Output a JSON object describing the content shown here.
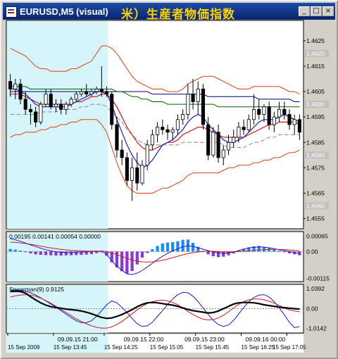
{
  "window": {
    "title": "EURUSD,M5 (visual)",
    "overlay_title": "米）生産者物価指数",
    "controls": {
      "minimize": "_",
      "maximize": "□",
      "close": "×"
    }
  },
  "colors": {
    "background": "#ffffff",
    "shaded_region": "#d6f5fb",
    "bull_candle": "#ffffff",
    "bear_candle": "#000000",
    "bollinger": "#e04010",
    "ma_blue": "#1818d0",
    "ma_red": "#d01818",
    "ma_green": "#006000",
    "ma_navy": "#000080",
    "macd_hist": "#8a3cd0",
    "macd_hist_pos": "#1e8cf0",
    "grid_dash": "#888888",
    "price_label_bg": "#c0c0c0"
  },
  "chart_data": [
    {
      "type": "candlestick",
      "name": "price",
      "y_ticks": [
        "1.4625",
        "1.4615",
        "1.4605",
        "1.4595",
        "1.4585",
        "1.4575",
        "1.4565",
        "1.4555"
      ],
      "y_highlight_labels": [
        "1.4620",
        "1.4600",
        "1.4580",
        "1.4560"
      ],
      "ylim": [
        1.4551,
        1.4633
      ],
      "candles": [
        [
          1.4609,
          1.4612,
          1.4603,
          1.4606
        ],
        [
          1.4606,
          1.461,
          1.4602,
          1.4608
        ],
        [
          1.4608,
          1.461,
          1.46,
          1.4602
        ],
        [
          1.4602,
          1.4605,
          1.4596,
          1.4598
        ],
        [
          1.4598,
          1.46,
          1.4592,
          1.4597
        ],
        [
          1.4597,
          1.4599,
          1.4591,
          1.4593
        ],
        [
          1.4593,
          1.4601,
          1.4592,
          1.46
        ],
        [
          1.46,
          1.4606,
          1.4599,
          1.4604
        ],
        [
          1.4604,
          1.4606,
          1.4598,
          1.4599
        ],
        [
          1.4599,
          1.4602,
          1.4597,
          1.46
        ],
        [
          1.46,
          1.4602,
          1.4596,
          1.4598
        ],
        [
          1.4598,
          1.4601,
          1.4596,
          1.46
        ],
        [
          1.46,
          1.4603,
          1.4599,
          1.4602
        ],
        [
          1.4602,
          1.4605,
          1.4601,
          1.4604
        ],
        [
          1.4604,
          1.4606,
          1.4603,
          1.4605
        ],
        [
          1.4605,
          1.4608,
          1.4603,
          1.4604
        ],
        [
          1.4604,
          1.4606,
          1.4603,
          1.4605
        ],
        [
          1.4605,
          1.4607,
          1.4604,
          1.4606
        ],
        [
          1.4606,
          1.4615,
          1.4603,
          1.4605
        ],
        [
          1.4605,
          1.4607,
          1.4603,
          1.4604
        ],
        [
          1.4604,
          1.4605,
          1.459,
          1.4592
        ],
        [
          1.4592,
          1.4595,
          1.4579,
          1.4582
        ],
        [
          1.4582,
          1.4586,
          1.4576,
          1.4579
        ],
        [
          1.4579,
          1.4581,
          1.4568,
          1.457
        ],
        [
          1.457,
          1.4579,
          1.4562,
          1.4575
        ],
        [
          1.4575,
          1.4581,
          1.4566,
          1.4569
        ],
        [
          1.4569,
          1.4578,
          1.4568,
          1.4576
        ],
        [
          1.4576,
          1.4586,
          1.4574,
          1.4584
        ],
        [
          1.4584,
          1.459,
          1.4582,
          1.4588
        ],
        [
          1.4588,
          1.4593,
          1.4585,
          1.4591
        ],
        [
          1.4591,
          1.4594,
          1.4588,
          1.459
        ],
        [
          1.459,
          1.4592,
          1.4586,
          1.4589
        ],
        [
          1.4589,
          1.4591,
          1.4586,
          1.459
        ],
        [
          1.459,
          1.4596,
          1.4588,
          1.4594
        ],
        [
          1.4594,
          1.4598,
          1.4592,
          1.4596
        ],
        [
          1.4596,
          1.4608,
          1.4594,
          1.4604
        ],
        [
          1.4604,
          1.461,
          1.4598,
          1.4601
        ],
        [
          1.4601,
          1.4609,
          1.4596,
          1.4606
        ],
        [
          1.4606,
          1.4608,
          1.459,
          1.4592
        ],
        [
          1.4592,
          1.4595,
          1.4578,
          1.458
        ],
        [
          1.458,
          1.4591,
          1.4579,
          1.4589
        ],
        [
          1.4589,
          1.4592,
          1.4577,
          1.4579
        ],
        [
          1.4579,
          1.4584,
          1.4576,
          1.4582
        ],
        [
          1.4582,
          1.4588,
          1.458,
          1.4585
        ],
        [
          1.4585,
          1.459,
          1.4583,
          1.4587
        ],
        [
          1.4587,
          1.4593,
          1.4585,
          1.4591
        ],
        [
          1.4591,
          1.4594,
          1.4588,
          1.459
        ],
        [
          1.459,
          1.4596,
          1.4589,
          1.4594
        ],
        [
          1.4594,
          1.4604,
          1.4592,
          1.4598
        ],
        [
          1.4598,
          1.4602,
          1.4594,
          1.4596
        ],
        [
          1.4596,
          1.46,
          1.4593,
          1.4599
        ],
        [
          1.4599,
          1.4601,
          1.459,
          1.4592
        ],
        [
          1.4592,
          1.4597,
          1.4589,
          1.4595
        ],
        [
          1.4595,
          1.4601,
          1.4593,
          1.4598
        ],
        [
          1.4598,
          1.4601,
          1.4594,
          1.4596
        ],
        [
          1.4596,
          1.4598,
          1.459,
          1.4592
        ],
        [
          1.4592,
          1.4596,
          1.4588,
          1.4594
        ],
        [
          1.4594,
          1.4596,
          1.4586,
          1.4589
        ]
      ],
      "bollinger_upper": [
        1.4622,
        1.4621,
        1.462,
        1.4619,
        1.4617,
        1.4615,
        1.4614,
        1.4614,
        1.4613,
        1.4613,
        1.4613,
        1.4613,
        1.4614,
        1.4614,
        1.4615,
        1.4616,
        1.4617,
        1.462,
        1.4623,
        1.4623,
        1.4622,
        1.462,
        1.4617,
        1.4614,
        1.4611,
        1.4609,
        1.4608,
        1.4607,
        1.4606,
        1.4606,
        1.4606,
        1.4605,
        1.4605,
        1.4605,
        1.4606,
        1.4608,
        1.4609,
        1.461,
        1.4611,
        1.4611,
        1.4611,
        1.461,
        1.4609,
        1.4608,
        1.4607,
        1.4606,
        1.4606,
        1.4606,
        1.4607,
        1.4607,
        1.4607,
        1.4607,
        1.4607,
        1.4607,
        1.4606,
        1.4605,
        1.4605,
        1.4604
      ],
      "bollinger_lower": [
        1.4587,
        1.4588,
        1.4588,
        1.4589,
        1.4589,
        1.4589,
        1.459,
        1.459,
        1.4591,
        1.4591,
        1.4592,
        1.4592,
        1.4593,
        1.4593,
        1.4594,
        1.4594,
        1.4594,
        1.4594,
        1.4592,
        1.4589,
        1.4583,
        1.4577,
        1.4572,
        1.4568,
        1.4566,
        1.4565,
        1.4565,
        1.4565,
        1.4565,
        1.4566,
        1.4567,
        1.4567,
        1.4568,
        1.4569,
        1.457,
        1.4572,
        1.4573,
        1.4573,
        1.4573,
        1.4573,
        1.4573,
        1.4573,
        1.4574,
        1.4575,
        1.4575,
        1.4576,
        1.4576,
        1.4576,
        1.4577,
        1.4577,
        1.4578,
        1.4578,
        1.4579,
        1.4579,
        1.458,
        1.4581,
        1.4581,
        1.4582
      ],
      "ma_blue": [
        1.4606,
        1.4606,
        1.4605,
        1.4604,
        1.4602,
        1.46,
        1.4599,
        1.4599,
        1.4599,
        1.4599,
        1.4599,
        1.4599,
        1.46,
        1.4601,
        1.4602,
        1.4603,
        1.4604,
        1.4605,
        1.4605,
        1.4604,
        1.46,
        1.4594,
        1.4589,
        1.4584,
        1.458,
        1.4577,
        1.4575,
        1.4576,
        1.4578,
        1.4581,
        1.4584,
        1.4585,
        1.4586,
        1.4588,
        1.459,
        1.4593,
        1.4595,
        1.4596,
        1.4595,
        1.4592,
        1.459,
        1.4588,
        1.4586,
        1.4585,
        1.4585,
        1.4586,
        1.4587,
        1.4589,
        1.4591,
        1.4593,
        1.4594,
        1.4594,
        1.4594,
        1.4595,
        1.4596,
        1.4595,
        1.4594,
        1.4593
      ],
      "ma_red": [
        1.4604,
        1.4604,
        1.4604,
        1.4603,
        1.4602,
        1.4601,
        1.46,
        1.46,
        1.46,
        1.46,
        1.46,
        1.46,
        1.46,
        1.4601,
        1.4601,
        1.4602,
        1.4603,
        1.4603,
        1.4604,
        1.4604,
        1.4602,
        1.4599,
        1.4595,
        1.4591,
        1.4588,
        1.4585,
        1.4583,
        1.4582,
        1.4582,
        1.4583,
        1.4584,
        1.4585,
        1.4585,
        1.4586,
        1.4588,
        1.4589,
        1.459,
        1.4591,
        1.4591,
        1.459,
        1.4589,
        1.4588,
        1.4587,
        1.4587,
        1.4587,
        1.4587,
        1.4587,
        1.4588,
        1.4589,
        1.459,
        1.4591,
        1.4592,
        1.4592,
        1.4593,
        1.4593,
        1.4593,
        1.4593,
        1.4592
      ],
      "ma_green": [
        1.4607,
        1.4607,
        1.4607,
        1.4607,
        1.4606,
        1.4606,
        1.4606,
        1.4606,
        1.4606,
        1.4606,
        1.4606,
        1.4606,
        1.4606,
        1.4606,
        1.4606,
        1.4606,
        1.4606,
        1.4606,
        1.4606,
        1.4606,
        1.4606,
        1.4605,
        1.4605,
        1.4604,
        1.4603,
        1.4603,
        1.4602,
        1.4602,
        1.4601,
        1.4601,
        1.4601,
        1.46,
        1.46,
        1.46,
        1.46,
        1.46,
        1.46,
        1.46,
        1.46,
        1.46,
        1.46,
        1.4599,
        1.4599,
        1.4599,
        1.4599,
        1.4599,
        1.4599,
        1.4599,
        1.4599,
        1.4599,
        1.4599,
        1.4599,
        1.4599,
        1.4599,
        1.4599,
        1.4599,
        1.4599,
        1.4599
      ],
      "ma_navy": [
        1.4605,
        1.4605,
        1.4605,
        1.4605,
        1.4605,
        1.4605,
        1.4605,
        1.4605,
        1.4605,
        1.4605,
        1.4605,
        1.4605,
        1.4605,
        1.4605,
        1.4605,
        1.4605,
        1.4605,
        1.4605,
        1.4605,
        1.4605,
        1.4605,
        1.4605,
        1.4605,
        1.4605,
        1.4605,
        1.4605,
        1.4605,
        1.4605,
        1.4604,
        1.4604,
        1.4604,
        1.4604,
        1.4604,
        1.4604,
        1.4604,
        1.4604,
        1.4604,
        1.4604,
        1.4604,
        1.4603,
        1.4603,
        1.4603,
        1.4603,
        1.4603,
        1.4603,
        1.4603,
        1.4603,
        1.4603,
        1.4603,
        1.4602,
        1.4602,
        1.4602,
        1.4602,
        1.4602,
        1.4602,
        1.4602,
        1.4601,
        1.4601
      ],
      "dash_mid": [
        1.4596,
        1.4596,
        1.4596,
        1.4596,
        1.4596,
        1.4596,
        1.4597,
        1.4597,
        1.4597,
        1.4597,
        1.4598,
        1.4598,
        1.4598,
        1.4598,
        1.4599,
        1.4599,
        1.46,
        1.46,
        1.46,
        1.4599,
        1.4597,
        1.4595,
        1.4593,
        1.459,
        1.4588,
        1.4586,
        1.4585,
        1.4584,
        1.4584,
        1.4584,
        1.4584,
        1.4584,
        1.4584,
        1.4584,
        1.4585,
        1.4585,
        1.4585,
        1.4585,
        1.4585,
        1.4585,
        1.4585,
        1.4585,
        1.4584,
        1.4583,
        1.4583,
        1.4583,
        1.4583,
        1.4584,
        1.4585,
        1.4585,
        1.4586,
        1.4587,
        1.4587,
        1.4588,
        1.4588,
        1.4588,
        1.4588,
        1.4588
      ]
    },
    {
      "type": "bar",
      "name": "macd",
      "legend_text": "0.00195 0.00141 0.00054 0.00000",
      "y_ticks": [
        "0.00065",
        "0.00",
        "-0.00115"
      ],
      "ylim": [
        -0.00128,
        0.00085
      ],
      "values": [
        0.00011,
        8e-05,
        4e-05,
        -2e-05,
        -8e-05,
        -0.00012,
        -0.00014,
        -0.00015,
        -0.00016,
        -0.00017,
        -0.00017,
        -0.00016,
        -0.00016,
        -0.00015,
        -0.00014,
        -0.00013,
        -0.00011,
        -7e-05,
        -2e-05,
        -0.00018,
        -0.00046,
        -0.00068,
        -0.00084,
        -0.00094,
        -0.00083,
        -0.00055,
        -0.00026,
        -6e-05,
        0.0001,
        0.00024,
        0.00034,
        0.00038,
        0.0004,
        0.00044,
        0.0005,
        0.00051,
        0.00037,
        0.0002,
        3e-05,
        -0.00012,
        -0.0002,
        -0.00024,
        -0.00022,
        -0.00016,
        -8e-05,
        4e-05,
        0.00012,
        0.00018,
        0.00022,
        0.00024,
        0.0002,
        0.00014,
        8e-05,
        4e-05,
        -2e-05,
        -8e-05,
        -0.00012,
        -0.00016
      ],
      "signal_blue": [
        0.00055,
        0.0005,
        0.00044,
        0.00036,
        0.00028,
        0.00021,
        0.00014,
        8e-05,
        3e-05,
        -1e-05,
        -3e-05,
        -4e-05,
        -4e-05,
        -3e-05,
        -2e-05,
        -1e-05,
        1e-05,
        2e-05,
        2e-05,
        -0.00012,
        -0.0004,
        -0.00062,
        -0.0008,
        -0.00095,
        -0.00098,
        -0.00092,
        -0.0008,
        -0.00066,
        -0.0005,
        -0.00034,
        -0.0002,
        -8e-05,
        3e-05,
        0.00012,
        0.0002,
        0.00024,
        0.00022,
        0.00016,
        0.0001,
        4e-05,
        -2e-05,
        -6e-05,
        -8e-05,
        -6e-05,
        -2e-05,
        4e-05,
        0.0001,
        0.00015,
        0.00018,
        0.0002,
        0.00019,
        0.00016,
        0.00012,
        8e-05,
        4e-05,
        0.0,
        -4e-05,
        -8e-05
      ],
      "signal_red": [
        0.0004,
        0.00039,
        0.00037,
        0.00034,
        0.00031,
        0.00027,
        0.00023,
        0.00019,
        0.00015,
        0.00012,
        9e-05,
        7e-05,
        5e-05,
        4e-05,
        3e-05,
        2e-05,
        2e-05,
        2e-05,
        2e-05,
        0.0,
        -6e-05,
        -0.00013,
        -0.00021,
        -0.00029,
        -0.00036,
        -0.00041,
        -0.00044,
        -0.00045,
        -0.00044,
        -0.00041,
        -0.00037,
        -0.00032,
        -0.00026,
        -0.0002,
        -0.00014,
        -9e-05,
        -5e-05,
        -2e-05,
        0.0,
        1e-05,
        1e-05,
        0.0,
        -1e-05,
        -1e-05,
        -1e-05,
        0.0,
        1e-05,
        3e-05,
        5e-05,
        7e-05,
        8e-05,
        9e-05,
        9e-05,
        9e-05,
        8e-05,
        7e-05,
        5e-05,
        3e-05
      ]
    },
    {
      "type": "line",
      "name": "spearman",
      "legend_text": "Spearman(9) 0.9125",
      "y_ticks": [
        "1.0392",
        "0.00",
        "-1.0142"
      ],
      "ylim": [
        -1.25,
        1.25
      ],
      "series_black": [
        0.88,
        0.9,
        0.88,
        0.8,
        0.62,
        0.45,
        0.3,
        0.18,
        0.1,
        0.06,
        0.02,
        -0.02,
        -0.05,
        -0.08,
        -0.12,
        -0.18,
        -0.26,
        -0.36,
        -0.45,
        -0.5,
        -0.48,
        -0.4,
        -0.3,
        -0.18,
        -0.05,
        0.1,
        0.22,
        0.3,
        0.32,
        0.3,
        0.26,
        0.22,
        0.18,
        0.12,
        0.04,
        -0.04,
        -0.1,
        -0.14,
        -0.18,
        -0.22,
        -0.2,
        -0.12,
        0.0,
        0.12,
        0.24,
        0.3,
        0.32,
        0.32,
        0.3,
        0.26,
        0.2,
        0.16,
        0.12,
        0.08,
        0.05,
        0.02,
        0.0,
        -0.02
      ],
      "series_blue": [
        0.95,
        0.96,
        0.94,
        0.9,
        0.82,
        0.7,
        0.56,
        0.4,
        0.24,
        0.08,
        -0.1,
        -0.28,
        -0.46,
        -0.62,
        -0.72,
        -0.72,
        -0.62,
        -0.4,
        -0.1,
        0.2,
        0.4,
        0.3,
        0.06,
        -0.2,
        -0.5,
        -0.78,
        -0.92,
        -0.88,
        -0.7,
        -0.4,
        -0.1,
        0.22,
        0.5,
        0.72,
        0.84,
        0.82,
        0.64,
        0.36,
        0.04,
        -0.3,
        -0.6,
        -0.82,
        -0.92,
        -0.84,
        -0.6,
        -0.28,
        0.06,
        0.36,
        0.58,
        0.7,
        0.72,
        0.6,
        0.36,
        0.04,
        -0.32,
        -0.7,
        -0.98,
        -0.92
      ],
      "series_red": [
        0.6,
        0.66,
        0.7,
        0.72,
        0.7,
        0.64,
        0.54,
        0.42,
        0.28,
        0.12,
        -0.04,
        -0.2,
        -0.36,
        -0.52,
        -0.66,
        -0.78,
        -0.88,
        -0.96,
        -1.0,
        -1.0,
        -0.94,
        -0.82,
        -0.66,
        -0.46,
        -0.26,
        -0.06,
        0.12,
        0.26,
        0.36,
        0.42,
        0.44,
        0.4,
        0.32,
        0.2,
        0.04,
        -0.14,
        -0.3,
        -0.44,
        -0.54,
        -0.58,
        -0.56,
        -0.48,
        -0.34,
        -0.16,
        0.04,
        0.22,
        0.36,
        0.46,
        0.5,
        0.5,
        0.46,
        0.38,
        0.28,
        0.16,
        0.04,
        -0.06,
        -0.12,
        -0.16
      ]
    }
  ],
  "x_axis": {
    "labels": [
      "15 Sep 2009",
      "15 Sep 13:45",
      "15 Sep 14:25",
      "15 Sep 15:05",
      "15 Sep 15:45",
      "15 Sep 16:25",
      "15 Sep 17:05"
    ],
    "separators": [
      "09.09.15 21:00",
      "09.09.15 22:00",
      "09.09.15 23:00",
      "09.09.16 00:00"
    ]
  }
}
